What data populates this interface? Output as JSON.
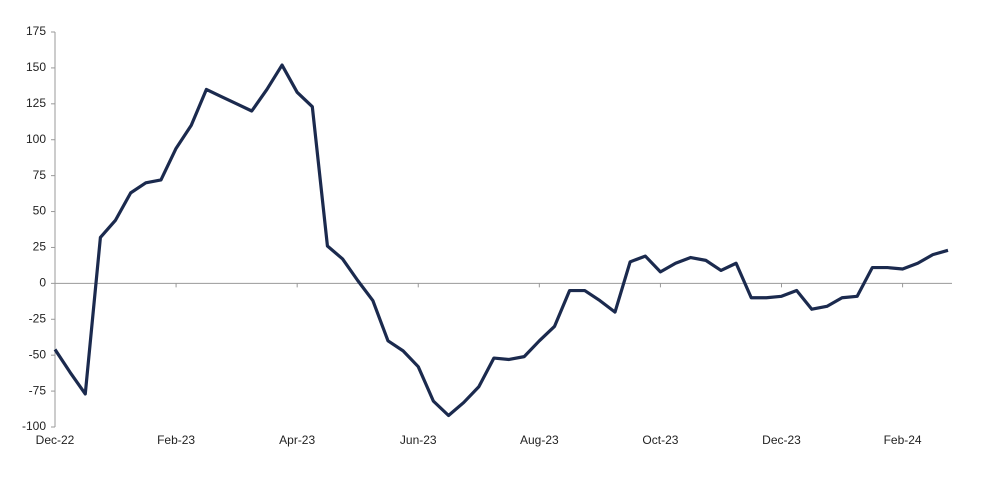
{
  "chart_data": {
    "type": "line",
    "categories": [
      "Dec-22",
      null,
      null,
      null,
      null,
      null,
      null,
      null,
      "Feb-23",
      null,
      null,
      null,
      null,
      null,
      null,
      null,
      "Apr-23",
      null,
      null,
      null,
      null,
      null,
      null,
      null,
      "Jun-23",
      null,
      null,
      null,
      null,
      null,
      null,
      null,
      "Aug-23",
      null,
      null,
      null,
      null,
      null,
      null,
      null,
      "Oct-23",
      null,
      null,
      null,
      null,
      null,
      null,
      null,
      "Dec-23",
      null,
      null,
      null,
      null,
      null,
      null,
      null,
      "Feb-24",
      null,
      null,
      null
    ],
    "series": [
      {
        "color": "#1b2a4e",
        "values": [
          -46,
          -62,
          -77,
          32,
          44,
          63,
          70,
          72,
          94,
          110,
          135,
          130,
          125,
          120,
          135,
          152,
          133,
          123,
          26,
          17,
          2,
          -12,
          -40,
          -47,
          -58,
          -82,
          -92,
          -83,
          -72,
          -52,
          -53,
          -51,
          -40,
          -30,
          -5,
          -5,
          -12,
          -20,
          15,
          19,
          8,
          14,
          18,
          16,
          9,
          14,
          -10,
          -10,
          -9,
          -5,
          -18,
          -16,
          -10,
          -9,
          11,
          11,
          10,
          14,
          20,
          23
        ]
      }
    ],
    "ylim": [
      -100,
      175
    ],
    "yticks": [
      -100,
      -75,
      -50,
      -25,
      0,
      25,
      50,
      75,
      100,
      125,
      150,
      175
    ]
  }
}
